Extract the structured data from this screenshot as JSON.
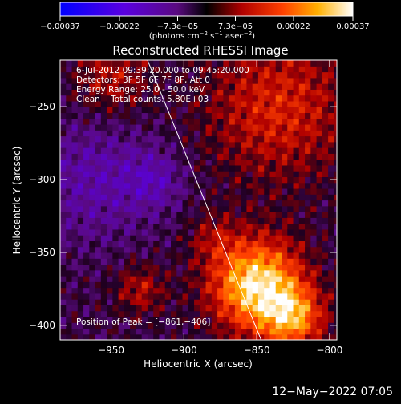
{
  "chart_data": {
    "type": "heatmap",
    "title": "Reconstructed RHESSI Image",
    "xlabel": "Heliocentric X (arcsec)",
    "ylabel": "Heliocentric Y (arcsec)",
    "xlim": [
      -985,
      -795
    ],
    "ylim": [
      -410,
      -218
    ],
    "xticks": [
      -950,
      -900,
      -850,
      -800
    ],
    "xtick_labels": [
      "−950",
      "−900",
      "−850",
      "−800"
    ],
    "yticks": [
      -250,
      -300,
      -350,
      -400
    ],
    "ytick_labels": [
      "−250",
      "−300",
      "−350",
      "−400"
    ],
    "colorbar": {
      "ticks": [
        -0.00037,
        -0.00022,
        -7.3e-05,
        7.3e-05,
        0.00022,
        0.00037
      ],
      "tick_labels": [
        "−0.00037",
        "−0.00022",
        "−7.3e−05",
        "7.3e−05",
        "0.00022",
        "0.00037"
      ],
      "label_main": "(photons cm",
      "label_exp1": "−2",
      "label_mid": " s",
      "label_exp2": "−1",
      "label_end": " asec",
      "label_exp3": "−2",
      "label_close": ")",
      "range": [
        -0.00037,
        0.00037
      ]
    },
    "peak": {
      "x": -861,
      "y": -406
    },
    "limb_line": {
      "x": [
        -925,
        -847
      ],
      "y": [
        -218,
        -410
      ]
    },
    "sources": [
      {
        "x": -850,
        "y": -372,
        "amplitude": 0.00037,
        "sigma": 22
      },
      {
        "x": -825,
        "y": -395,
        "amplitude": 0.00024,
        "sigma": 15
      },
      {
        "x": -835,
        "y": -250,
        "amplitude": 0.00016,
        "sigma": 35
      },
      {
        "x": -950,
        "y": -230,
        "amplitude": 0.00012,
        "sigma": 18
      },
      {
        "x": -930,
        "y": -375,
        "amplitude": 0.00012,
        "sigma": 12
      },
      {
        "x": -880,
        "y": -340,
        "amplitude": 8e-05,
        "sigma": 12
      },
      {
        "x": -960,
        "y": -300,
        "amplitude": -0.0001,
        "sigma": 30
      },
      {
        "x": -920,
        "y": -300,
        "amplitude": -9e-05,
        "sigma": 14
      }
    ]
  },
  "annotations": {
    "line1": "6-Jul-2012 09:39:20.000 to 09:45:20.000",
    "line2": "Detectors: 3F 5F 6F 7F 8F, Att 0",
    "line3": "Energy Range: 25.0 - 50.0 keV",
    "line4": "Clean    Total counts: 5.80E+03",
    "peak_label": "Position of Peak = [−861,−406]"
  },
  "footer": {
    "date": "12−May−2022 07:05"
  }
}
